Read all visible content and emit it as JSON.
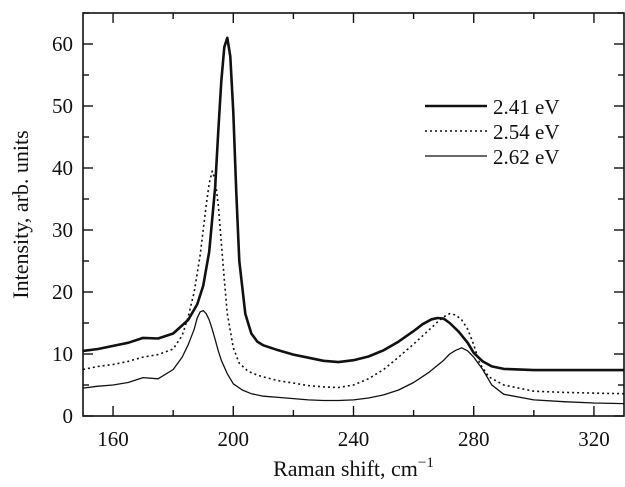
{
  "chart_data": {
    "type": "line",
    "xlabel": "Raman shift, cm",
    "xlabel_superscript": "−1",
    "ylabel": "Intensity, arb. units",
    "xlim": [
      150,
      330
    ],
    "ylim": [
      0,
      65
    ],
    "x_ticks": [
      160,
      200,
      240,
      280,
      320
    ],
    "y_ticks": [
      0,
      10,
      20,
      30,
      40,
      50,
      60
    ],
    "legend_position": "top-right",
    "series": [
      {
        "name": "2.41 eV",
        "style": "solid-thick",
        "x": [
          150,
          155,
          160,
          165,
          170,
          175,
          180,
          185,
          188,
          190,
          192,
          194,
          195,
          196,
          197,
          198,
          199,
          200,
          201,
          202,
          204,
          206,
          208,
          210,
          215,
          220,
          225,
          230,
          235,
          240,
          245,
          250,
          255,
          260,
          263,
          266,
          268,
          270,
          272,
          275,
          278,
          280,
          283,
          286,
          290,
          300,
          310,
          320,
          330
        ],
        "y": [
          10.5,
          10.8,
          11.3,
          11.8,
          12.6,
          12.5,
          13.3,
          15.5,
          18.0,
          21.0,
          26.5,
          37.0,
          46.0,
          54.0,
          59.5,
          61.0,
          58.0,
          49.0,
          36.0,
          25.0,
          16.5,
          13.3,
          12.0,
          11.4,
          10.6,
          9.9,
          9.4,
          8.9,
          8.7,
          9.0,
          9.6,
          10.6,
          12.0,
          13.7,
          14.8,
          15.6,
          15.8,
          15.7,
          15.0,
          13.6,
          11.8,
          10.2,
          8.8,
          8.0,
          7.6,
          7.4,
          7.4,
          7.4,
          7.4
        ]
      },
      {
        "name": "2.54 eV",
        "style": "dotted",
        "x": [
          150,
          155,
          160,
          165,
          170,
          175,
          180,
          183,
          185,
          187,
          189,
          190,
          191,
          192,
          193,
          194,
          195,
          196,
          197,
          198,
          200,
          202,
          205,
          208,
          210,
          215,
          220,
          225,
          230,
          235,
          240,
          245,
          250,
          255,
          260,
          265,
          268,
          270,
          272,
          274,
          276,
          278,
          280,
          282,
          285,
          290,
          300,
          310,
          320,
          330
        ],
        "y": [
          7.5,
          8.0,
          8.3,
          8.8,
          9.5,
          9.9,
          10.8,
          13.0,
          16.0,
          20.0,
          26.0,
          30.0,
          34.0,
          37.5,
          39.5,
          38.0,
          34.0,
          28.0,
          22.0,
          16.5,
          11.0,
          8.5,
          7.2,
          6.6,
          6.3,
          5.7,
          5.3,
          4.9,
          4.7,
          4.6,
          5.0,
          6.0,
          7.5,
          9.5,
          11.6,
          13.8,
          15.2,
          16.0,
          16.5,
          16.3,
          15.5,
          14.0,
          11.5,
          8.5,
          6.3,
          5.0,
          4.0,
          3.8,
          3.7,
          3.6
        ]
      },
      {
        "name": "2.62 eV",
        "style": "solid-thin",
        "x": [
          150,
          155,
          160,
          165,
          170,
          175,
          180,
          183,
          185,
          187,
          188,
          189,
          190,
          191,
          192,
          193,
          194,
          195,
          196,
          198,
          200,
          203,
          206,
          210,
          215,
          220,
          225,
          230,
          235,
          240,
          245,
          250,
          255,
          260,
          265,
          270,
          272,
          274,
          276,
          278,
          280,
          283,
          286,
          290,
          300,
          310,
          320,
          330
        ],
        "y": [
          4.5,
          4.8,
          5.0,
          5.4,
          6.2,
          6.0,
          7.5,
          9.5,
          11.5,
          14.0,
          15.8,
          16.8,
          17.0,
          16.5,
          15.5,
          14.0,
          12.3,
          10.5,
          9.0,
          6.8,
          5.2,
          4.2,
          3.6,
          3.2,
          3.0,
          2.8,
          2.6,
          2.5,
          2.5,
          2.6,
          2.9,
          3.4,
          4.2,
          5.4,
          7.0,
          9.0,
          10.0,
          10.6,
          11.0,
          10.5,
          9.5,
          7.5,
          5.0,
          3.5,
          2.6,
          2.3,
          2.1,
          2.0
        ]
      }
    ]
  }
}
